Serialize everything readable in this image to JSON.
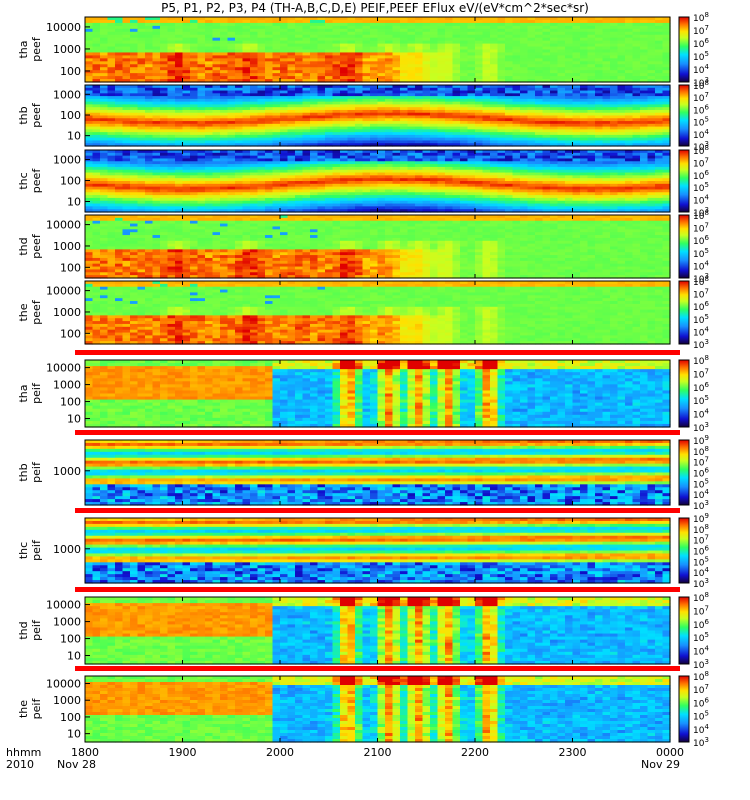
{
  "title": "P5, P1, P2, P3, P4 (TH-A,B,C,D,E) PEIF,PEEF EFlux eV/(eV*cm^2*sec*sr)",
  "time_axis": {
    "row_label_top": "hhmm",
    "row_label_bottom": "2010",
    "ticks": [
      "1800",
      "1900",
      "2000",
      "2100",
      "2200",
      "2300",
      "0000"
    ],
    "date_start": "Nov 28",
    "date_end": "Nov 29"
  },
  "chart_data": {
    "type": "heatmap",
    "title": "P5, P1, P2, P3, P4 (TH-A,B,C,D,E) PEIF,PEEF EFlux eV/(eV*cm^2*sec*sr)",
    "x": {
      "start": "2010-11-28 18:00",
      "end": "2010-11-29 00:00",
      "ticks": [
        "1800",
        "1900",
        "2000",
        "2100",
        "2200",
        "2300",
        "0000"
      ]
    },
    "colorbar_unit": "EFlux eV/(eV*cm^2*sec*sr)",
    "panels": [
      {
        "probe": "tha",
        "product": "peef",
        "ylabel_top": "tha",
        "ylabel_bottom": "peef",
        "yscale": "log",
        "yticks": [
          100,
          1000,
          10000
        ],
        "cbar_min_exp": 3,
        "cbar_max_exp": 8
      },
      {
        "probe": "thb",
        "product": "peef",
        "ylabel_top": "thb",
        "ylabel_bottom": "peef",
        "yscale": "log",
        "yticks": [
          10,
          100,
          1000
        ],
        "cbar_min_exp": 3,
        "cbar_max_exp": 8
      },
      {
        "probe": "thc",
        "product": "peef",
        "ylabel_top": "thc",
        "ylabel_bottom": "peef",
        "yscale": "log",
        "yticks": [
          10,
          100,
          1000
        ],
        "cbar_min_exp": 3,
        "cbar_max_exp": 8
      },
      {
        "probe": "thd",
        "product": "peef",
        "ylabel_top": "thd",
        "ylabel_bottom": "peef",
        "yscale": "log",
        "yticks": [
          100,
          1000,
          10000
        ],
        "cbar_min_exp": 3,
        "cbar_max_exp": 8
      },
      {
        "probe": "the",
        "product": "peef",
        "ylabel_top": "the",
        "ylabel_bottom": "peef",
        "yscale": "log",
        "yticks": [
          100,
          1000,
          10000
        ],
        "cbar_min_exp": 3,
        "cbar_max_exp": 8
      },
      {
        "probe": "tha",
        "product": "peif",
        "ylabel_top": "tha",
        "ylabel_bottom": "peif",
        "yscale": "log",
        "yticks": [
          10,
          100,
          1000,
          10000
        ],
        "cbar_min_exp": 3,
        "cbar_max_exp": 8
      },
      {
        "probe": "thb",
        "product": "peif",
        "ylabel_top": "thb",
        "ylabel_bottom": "peif",
        "yscale": "log",
        "yticks": [
          1000
        ],
        "cbar_min_exp": 3,
        "cbar_max_exp": 9
      },
      {
        "probe": "thc",
        "product": "peif",
        "ylabel_top": "thc",
        "ylabel_bottom": "peif",
        "yscale": "log",
        "yticks": [
          1000
        ],
        "cbar_min_exp": 3,
        "cbar_max_exp": 9
      },
      {
        "probe": "thd",
        "product": "peif",
        "ylabel_top": "thd",
        "ylabel_bottom": "peif",
        "yscale": "log",
        "yticks": [
          10,
          100,
          1000,
          10000
        ],
        "cbar_min_exp": 3,
        "cbar_max_exp": 8
      },
      {
        "probe": "the",
        "product": "peif",
        "ylabel_top": "the",
        "ylabel_bottom": "peif",
        "yscale": "log",
        "yticks": [
          10,
          100,
          1000,
          10000
        ],
        "cbar_min_exp": 3,
        "cbar_max_exp": 8
      }
    ]
  }
}
